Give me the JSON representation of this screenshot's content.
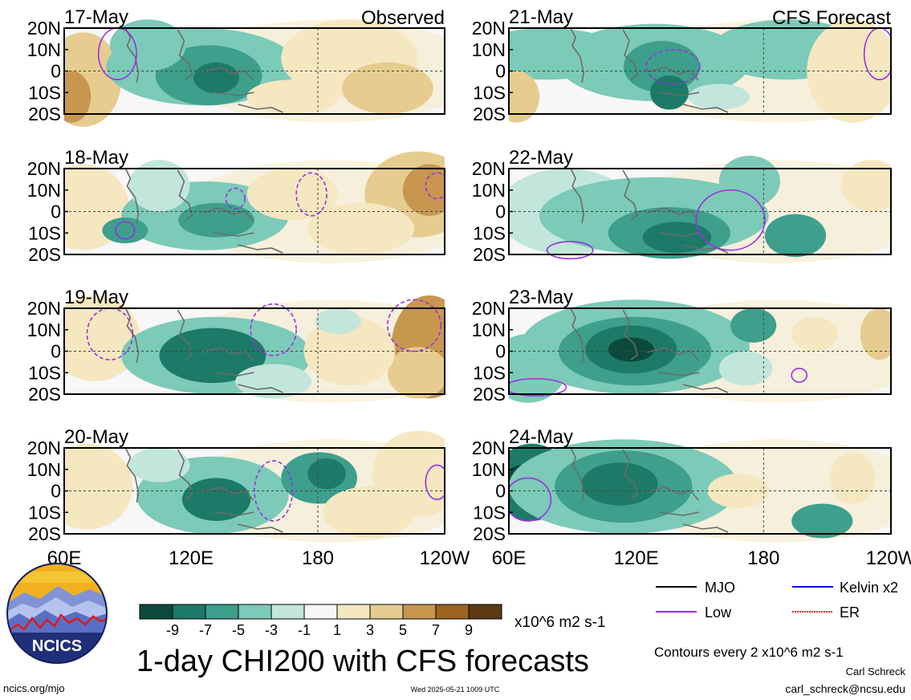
{
  "panels": [
    {
      "date": "17-May",
      "column": "left",
      "tag": "Observed"
    },
    {
      "date": "18-May",
      "column": "left",
      "tag": ""
    },
    {
      "date": "19-May",
      "column": "left",
      "tag": ""
    },
    {
      "date": "20-May",
      "column": "left",
      "tag": ""
    },
    {
      "date": "21-May",
      "column": "right",
      "tag": "CFS Forecast"
    },
    {
      "date": "22-May",
      "column": "right",
      "tag": ""
    },
    {
      "date": "23-May",
      "column": "right",
      "tag": ""
    },
    {
      "date": "24-May",
      "column": "right",
      "tag": ""
    }
  ],
  "lat_labels": [
    "20N",
    "10N",
    "0",
    "10S",
    "20S"
  ],
  "lon_labels": [
    "60E",
    "120E",
    "180",
    "120W"
  ],
  "colorbar": {
    "colors": [
      "#0b4a3c",
      "#1d7a68",
      "#3d9f8c",
      "#7ccab8",
      "#c2e6dc",
      "#f7f7f7",
      "#f5e7c0",
      "#e6cc8e",
      "#c7974f",
      "#9c6420",
      "#5c3a12"
    ],
    "tick_labels": [
      "-9",
      "-7",
      "-5",
      "-3",
      "-1",
      "1",
      "3",
      "5",
      "7",
      "9"
    ],
    "units": "x10^6 m2 s-1"
  },
  "title": "1-day CHI200 with CFS forecasts",
  "legend": [
    {
      "label": "MJO",
      "color": "#000000"
    },
    {
      "label": "Kelvin x2",
      "color": "#0000ff"
    },
    {
      "label": "Low",
      "color": "#9a30e0"
    },
    {
      "label": "ER",
      "color": "#ff0000"
    }
  ],
  "contour_note": "Contours every 2 x10^6 m2 s-1",
  "author": "Carl Schreck",
  "email": "carl_schreck@ncsu.edu",
  "website": "ncics.org/mjo",
  "timestamp": "Wed 2025-05-21 1009 UTC",
  "logo_text": "NCICS"
}
